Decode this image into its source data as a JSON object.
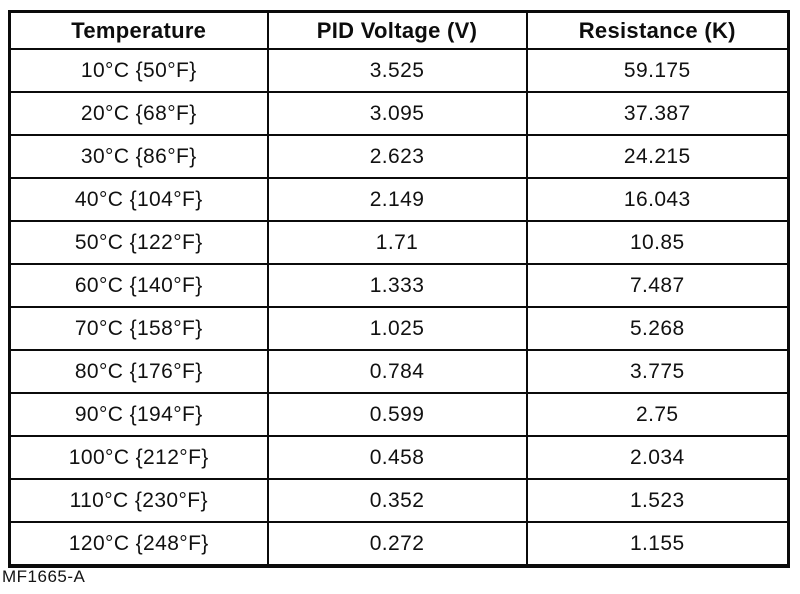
{
  "figure_code": "MF1665-A",
  "colors": {
    "background": "#ffffff",
    "border": "#0b0b0b",
    "text": "#111111"
  },
  "table": {
    "headers": [
      {
        "label": "Temperature"
      },
      {
        "label": "PID Voltage (V)"
      },
      {
        "label": "Resistance (K)"
      }
    ],
    "rows": [
      {
        "temperature": "10°C {50°F}",
        "pid_voltage": "3.525",
        "resistance": "59.175"
      },
      {
        "temperature": "20°C {68°F}",
        "pid_voltage": "3.095",
        "resistance": "37.387"
      },
      {
        "temperature": "30°C {86°F}",
        "pid_voltage": "2.623",
        "resistance": "24.215"
      },
      {
        "temperature": "40°C {104°F}",
        "pid_voltage": "2.149",
        "resistance": "16.043"
      },
      {
        "temperature": "50°C {122°F}",
        "pid_voltage": "1.71",
        "resistance": "10.85"
      },
      {
        "temperature": "60°C {140°F}",
        "pid_voltage": "1.333",
        "resistance": "7.487"
      },
      {
        "temperature": "70°C {158°F}",
        "pid_voltage": "1.025",
        "resistance": "5.268"
      },
      {
        "temperature": "80°C {176°F}",
        "pid_voltage": "0.784",
        "resistance": "3.775"
      },
      {
        "temperature": "90°C {194°F}",
        "pid_voltage": "0.599",
        "resistance": "2.75"
      },
      {
        "temperature": "100°C {212°F}",
        "pid_voltage": "0.458",
        "resistance": "2.034"
      },
      {
        "temperature": "110°C {230°F}",
        "pid_voltage": "0.352",
        "resistance": "1.523"
      },
      {
        "temperature": "120°C {248°F}",
        "pid_voltage": "0.272",
        "resistance": "1.155"
      }
    ]
  }
}
